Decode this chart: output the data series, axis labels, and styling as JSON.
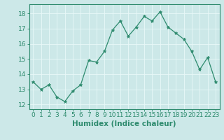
{
  "x": [
    0,
    1,
    2,
    3,
    4,
    5,
    6,
    7,
    8,
    9,
    10,
    11,
    12,
    13,
    14,
    15,
    16,
    17,
    18,
    19,
    20,
    21,
    22,
    23
  ],
  "y": [
    13.5,
    13.0,
    13.3,
    12.5,
    12.2,
    12.9,
    13.3,
    14.9,
    14.8,
    15.5,
    16.9,
    17.5,
    16.5,
    17.1,
    17.8,
    17.5,
    18.1,
    17.1,
    16.7,
    16.3,
    15.5,
    14.3,
    15.1,
    13.5
  ],
  "line_color": "#2e8b6e",
  "marker": "*",
  "marker_size": 3.5,
  "bg_color": "#cce8e8",
  "grid_color": "#b0d8d8",
  "xlabel": "Humidex (Indice chaleur)",
  "xlim": [
    -0.5,
    23.5
  ],
  "ylim": [
    11.7,
    18.6
  ],
  "yticks": [
    12,
    13,
    14,
    15,
    16,
    17,
    18
  ],
  "xticks": [
    0,
    1,
    2,
    3,
    4,
    5,
    6,
    7,
    8,
    9,
    10,
    11,
    12,
    13,
    14,
    15,
    16,
    17,
    18,
    19,
    20,
    21,
    22,
    23
  ],
  "tick_label_fontsize": 6.5,
  "xlabel_fontsize": 7.5
}
